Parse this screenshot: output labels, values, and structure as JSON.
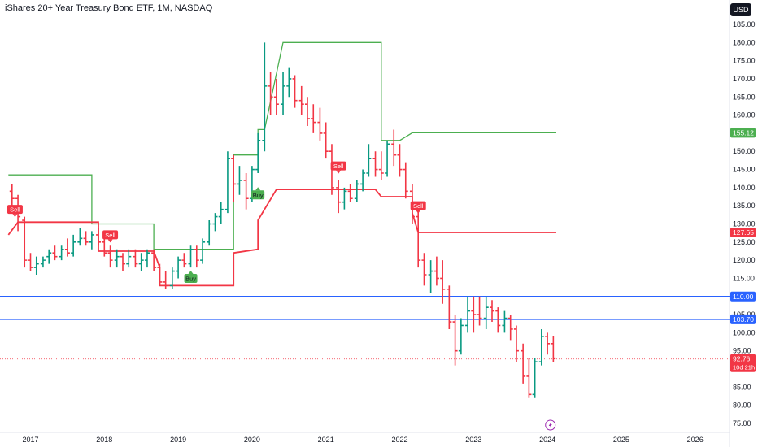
{
  "header": {
    "title": "iShares 20+ Year Treasury Bond ETF, 1M, NASDAQ"
  },
  "currency_button": "USD",
  "colors": {
    "up": "#089981",
    "down": "#f23645",
    "upper_band": "#4caf50",
    "lower_band": "#f23645",
    "level": "#2962ff",
    "buy": "#4caf50",
    "sell": "#f23645",
    "last": "#f23645"
  },
  "chart_data": {
    "type": "bar",
    "x_ticks": [
      "2017",
      "2018",
      "2019",
      "2020",
      "2021",
      "2022",
      "2023",
      "2024",
      "2025",
      "2026"
    ],
    "y_ticks": [
      "75.00",
      "80.00",
      "85.00",
      "90.00",
      "95.00",
      "100.00",
      "105.00",
      "110.00",
      "115.00",
      "120.00",
      "125.00",
      "130.00",
      "135.00",
      "140.00",
      "145.00",
      "150.00",
      "155.00",
      "160.00",
      "165.00",
      "170.00",
      "175.00",
      "180.00",
      "185.00"
    ],
    "ylim": [
      73.5,
      187.5
    ],
    "xlim": [
      2016.7,
      2026.7
    ],
    "ohlc": [
      [
        2016.75,
        139,
        141,
        135,
        137
      ],
      [
        2016.83,
        137,
        138,
        128,
        132
      ],
      [
        2016.92,
        131,
        132,
        118,
        120
      ],
      [
        2017.0,
        120,
        122,
        117,
        118
      ],
      [
        2017.08,
        118,
        121,
        116,
        119
      ],
      [
        2017.17,
        119,
        121,
        118,
        120
      ],
      [
        2017.25,
        121,
        123,
        119,
        122
      ],
      [
        2017.33,
        122,
        124,
        120,
        121
      ],
      [
        2017.42,
        121,
        124,
        120,
        123
      ],
      [
        2017.5,
        123,
        126,
        121,
        122
      ],
      [
        2017.58,
        122,
        127,
        121,
        125
      ],
      [
        2017.67,
        125,
        129,
        124,
        126
      ],
      [
        2017.75,
        126,
        128,
        124,
        125
      ],
      [
        2017.83,
        125,
        128,
        123,
        127
      ],
      [
        2017.92,
        127,
        129,
        124,
        125
      ],
      [
        2018.0,
        125,
        127,
        121,
        122
      ],
      [
        2018.08,
        122,
        124,
        118,
        120
      ],
      [
        2018.17,
        120,
        123,
        118,
        121
      ],
      [
        2018.25,
        121,
        122,
        117,
        119
      ],
      [
        2018.33,
        119,
        123,
        118,
        121
      ],
      [
        2018.42,
        121,
        123,
        118,
        119
      ],
      [
        2018.5,
        119,
        122,
        117,
        120
      ],
      [
        2018.58,
        120,
        123,
        118,
        122
      ],
      [
        2018.67,
        122,
        123,
        117,
        118
      ],
      [
        2018.75,
        118,
        119,
        113,
        114
      ],
      [
        2018.83,
        114,
        117,
        112,
        113
      ],
      [
        2018.92,
        113,
        118,
        112,
        117
      ],
      [
        2019.0,
        117,
        121,
        115,
        120
      ],
      [
        2019.08,
        120,
        122,
        118,
        119
      ],
      [
        2019.17,
        119,
        124,
        118,
        123
      ],
      [
        2019.25,
        123,
        124,
        118,
        120
      ],
      [
        2019.33,
        120,
        126,
        119,
        125
      ],
      [
        2019.42,
        125,
        131,
        124,
        130
      ],
      [
        2019.5,
        130,
        133,
        128,
        132
      ],
      [
        2019.58,
        132,
        136,
        130,
        134
      ],
      [
        2019.67,
        134,
        150,
        133,
        148
      ],
      [
        2019.75,
        148,
        149,
        136,
        141
      ],
      [
        2019.83,
        141,
        146,
        138,
        142
      ],
      [
        2019.92,
        142,
        144,
        134,
        137
      ],
      [
        2020.0,
        137,
        146,
        136,
        145
      ],
      [
        2020.08,
        145,
        155,
        144,
        153
      ],
      [
        2020.17,
        153,
        180,
        150,
        168
      ],
      [
        2020.25,
        168,
        172,
        160,
        165
      ],
      [
        2020.33,
        165,
        170,
        160,
        163
      ],
      [
        2020.42,
        163,
        172,
        160,
        168
      ],
      [
        2020.5,
        168,
        173,
        165,
        170
      ],
      [
        2020.58,
        170,
        171,
        162,
        164
      ],
      [
        2020.67,
        164,
        168,
        160,
        163
      ],
      [
        2020.75,
        163,
        165,
        157,
        159
      ],
      [
        2020.83,
        159,
        163,
        155,
        158
      ],
      [
        2020.92,
        158,
        162,
        153,
        155
      ],
      [
        2021.0,
        155,
        158,
        148,
        150
      ],
      [
        2021.08,
        150,
        152,
        138,
        140
      ],
      [
        2021.17,
        140,
        142,
        133,
        136
      ],
      [
        2021.25,
        136,
        140,
        134,
        139
      ],
      [
        2021.33,
        139,
        141,
        136,
        137
      ],
      [
        2021.42,
        137,
        142,
        136,
        141
      ],
      [
        2021.5,
        141,
        145,
        139,
        144
      ],
      [
        2021.58,
        144,
        152,
        143,
        148
      ],
      [
        2021.67,
        148,
        150,
        143,
        145
      ],
      [
        2021.75,
        145,
        150,
        142,
        144
      ],
      [
        2021.83,
        144,
        153,
        143,
        152
      ],
      [
        2021.92,
        152,
        156,
        146,
        149
      ],
      [
        2022.0,
        149,
        152,
        143,
        145
      ],
      [
        2022.08,
        145,
        147,
        137,
        139
      ],
      [
        2022.17,
        139,
        141,
        130,
        132
      ],
      [
        2022.25,
        132,
        134,
        118,
        120
      ],
      [
        2022.33,
        120,
        122,
        113,
        116
      ],
      [
        2022.42,
        116,
        120,
        111,
        117
      ],
      [
        2022.5,
        117,
        121,
        113,
        115
      ],
      [
        2022.58,
        115,
        120,
        108,
        112
      ],
      [
        2022.67,
        112,
        113,
        101,
        103
      ],
      [
        2022.75,
        103,
        105,
        91,
        95
      ],
      [
        2022.83,
        95,
        104,
        94,
        102
      ],
      [
        2022.92,
        102,
        110,
        100,
        106
      ],
      [
        2023.0,
        106,
        110,
        100,
        105
      ],
      [
        2023.08,
        105,
        110,
        102,
        104
      ],
      [
        2023.17,
        104,
        110,
        101,
        107
      ],
      [
        2023.25,
        107,
        109,
        103,
        106
      ],
      [
        2023.33,
        106,
        107,
        100,
        102
      ],
      [
        2023.42,
        102,
        106,
        100,
        104
      ],
      [
        2023.5,
        104,
        105,
        98,
        101
      ],
      [
        2023.58,
        101,
        102,
        92,
        95
      ],
      [
        2023.67,
        95,
        97,
        86,
        88
      ],
      [
        2023.75,
        88,
        93,
        82,
        83
      ],
      [
        2023.83,
        83,
        93,
        82,
        92
      ],
      [
        2023.92,
        92,
        101,
        91,
        99
      ],
      [
        2024.0,
        99,
        100,
        94,
        97
      ],
      [
        2024.08,
        97,
        99,
        92,
        93
      ]
    ],
    "upper_band": [
      [
        2016.7,
        143.5
      ],
      [
        2017.83,
        143.5
      ],
      [
        2017.83,
        130
      ],
      [
        2018.67,
        130
      ],
      [
        2018.67,
        123
      ],
      [
        2019.75,
        123
      ],
      [
        2019.75,
        149
      ],
      [
        2020.08,
        149
      ],
      [
        2020.08,
        156
      ],
      [
        2020.17,
        156
      ],
      [
        2020.42,
        180
      ],
      [
        2021.75,
        180
      ],
      [
        2021.75,
        153
      ],
      [
        2022.0,
        153
      ],
      [
        2022.17,
        155.12
      ],
      [
        2024.12,
        155.12
      ]
    ],
    "lower_band": [
      [
        2016.7,
        127
      ],
      [
        2016.83,
        130.5
      ],
      [
        2017.92,
        130.5
      ],
      [
        2017.92,
        122.5
      ],
      [
        2018.67,
        122.5
      ],
      [
        2018.75,
        118
      ],
      [
        2018.75,
        113
      ],
      [
        2019.75,
        113
      ],
      [
        2019.75,
        122
      ],
      [
        2020.08,
        123
      ],
      [
        2020.08,
        131
      ],
      [
        2020.33,
        139.5
      ],
      [
        2021.67,
        139.5
      ],
      [
        2021.75,
        137.5
      ],
      [
        2022.17,
        137.5
      ],
      [
        2022.17,
        133
      ],
      [
        2022.25,
        127.65
      ],
      [
        2024.12,
        127.65
      ]
    ],
    "hlines": [
      110.0,
      103.7
    ],
    "last_close": 92.76,
    "signals": [
      {
        "label": "Sell",
        "x": 2016.79,
        "y": 134
      },
      {
        "label": "Sell",
        "x": 2018.08,
        "y": 127
      },
      {
        "label": "Buy",
        "x": 2020.08,
        "y": 138
      },
      {
        "label": "Buy",
        "x": 2019.17,
        "y": 115
      },
      {
        "label": "Sell",
        "x": 2021.17,
        "y": 146
      },
      {
        "label": "Sell",
        "x": 2022.25,
        "y": 135
      }
    ],
    "price_labels": [
      {
        "value": 155.12,
        "text": "155.12",
        "color": "#4caf50"
      },
      {
        "value": 127.65,
        "text": "127.65",
        "color": "#f23645"
      },
      {
        "value": 110.0,
        "text": "110.00",
        "color": "#2962ff"
      },
      {
        "value": 103.7,
        "text": "103.70",
        "color": "#2962ff"
      },
      {
        "value": 92.76,
        "text": "92.76",
        "sub": "10d 21h",
        "color": "#f23645"
      }
    ],
    "event_marker": {
      "x": 2024.04
    }
  }
}
